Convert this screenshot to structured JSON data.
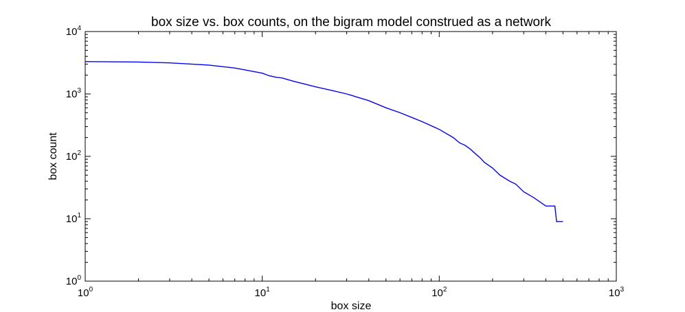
{
  "chart_data": {
    "type": "line",
    "title": "box size vs. box counts, on the bigram model construed as a network",
    "xlabel": "box size",
    "ylabel": "box count",
    "xscale": "log",
    "yscale": "log",
    "xlim": [
      1,
      1000
    ],
    "ylim": [
      1,
      10000
    ],
    "grid": false,
    "legend": "none",
    "x_ticks": [
      {
        "base": "10",
        "exp": "0",
        "value": 1
      },
      {
        "base": "10",
        "exp": "1",
        "value": 10
      },
      {
        "base": "10",
        "exp": "2",
        "value": 100
      },
      {
        "base": "10",
        "exp": "3",
        "value": 1000
      }
    ],
    "y_ticks": [
      {
        "base": "10",
        "exp": "0",
        "value": 1
      },
      {
        "base": "10",
        "exp": "1",
        "value": 10
      },
      {
        "base": "10",
        "exp": "2",
        "value": 100
      },
      {
        "base": "10",
        "exp": "3",
        "value": 1000
      },
      {
        "base": "10",
        "exp": "4",
        "value": 10000
      }
    ],
    "series": [
      {
        "color": "#0000ff",
        "x": [
          1,
          2,
          3,
          5,
          7,
          10,
          11,
          12,
          13,
          15,
          20,
          25,
          30,
          40,
          50,
          60,
          70,
          80,
          100,
          120,
          130,
          140,
          150,
          160,
          170,
          180,
          200,
          220,
          250,
          270,
          300,
          340,
          400,
          450,
          460,
          500
        ],
        "y": [
          3300,
          3250,
          3150,
          2900,
          2600,
          2150,
          1950,
          1850,
          1800,
          1600,
          1300,
          1130,
          1000,
          780,
          600,
          500,
          420,
          360,
          270,
          200,
          165,
          150,
          130,
          110,
          95,
          80,
          65,
          50,
          40,
          36,
          27,
          22,
          16,
          16,
          9,
          9
        ]
      }
    ]
  }
}
